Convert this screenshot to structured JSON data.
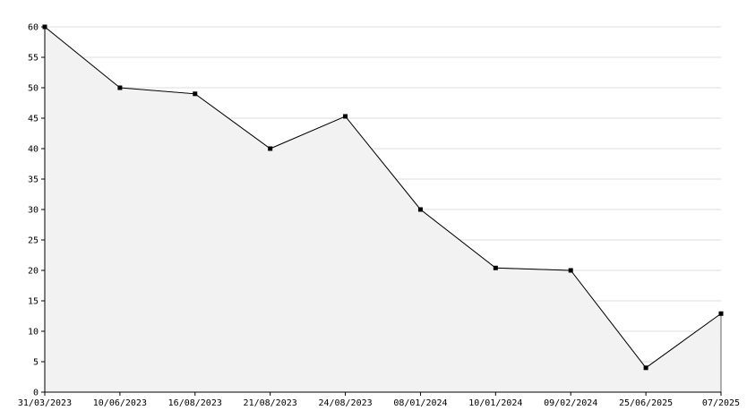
{
  "chart_data": {
    "type": "area",
    "categories": [
      "31/03/2023",
      "10/06/2023",
      "16/08/2023",
      "21/08/2023",
      "24/08/2023",
      "08/01/2024",
      "10/01/2024",
      "09/02/2024",
      "25/06/2025",
      "07/2025"
    ],
    "values": [
      60,
      50,
      49,
      40,
      45.3,
      30,
      20.4,
      20,
      4,
      12.9
    ],
    "color": "#000000",
    "fill": "#f2f2f2",
    "ylim": [
      0,
      60
    ],
    "yticks": [
      0,
      5,
      10,
      15,
      20,
      25,
      30,
      35,
      40,
      45,
      50,
      55,
      60
    ],
    "grid": true
  }
}
